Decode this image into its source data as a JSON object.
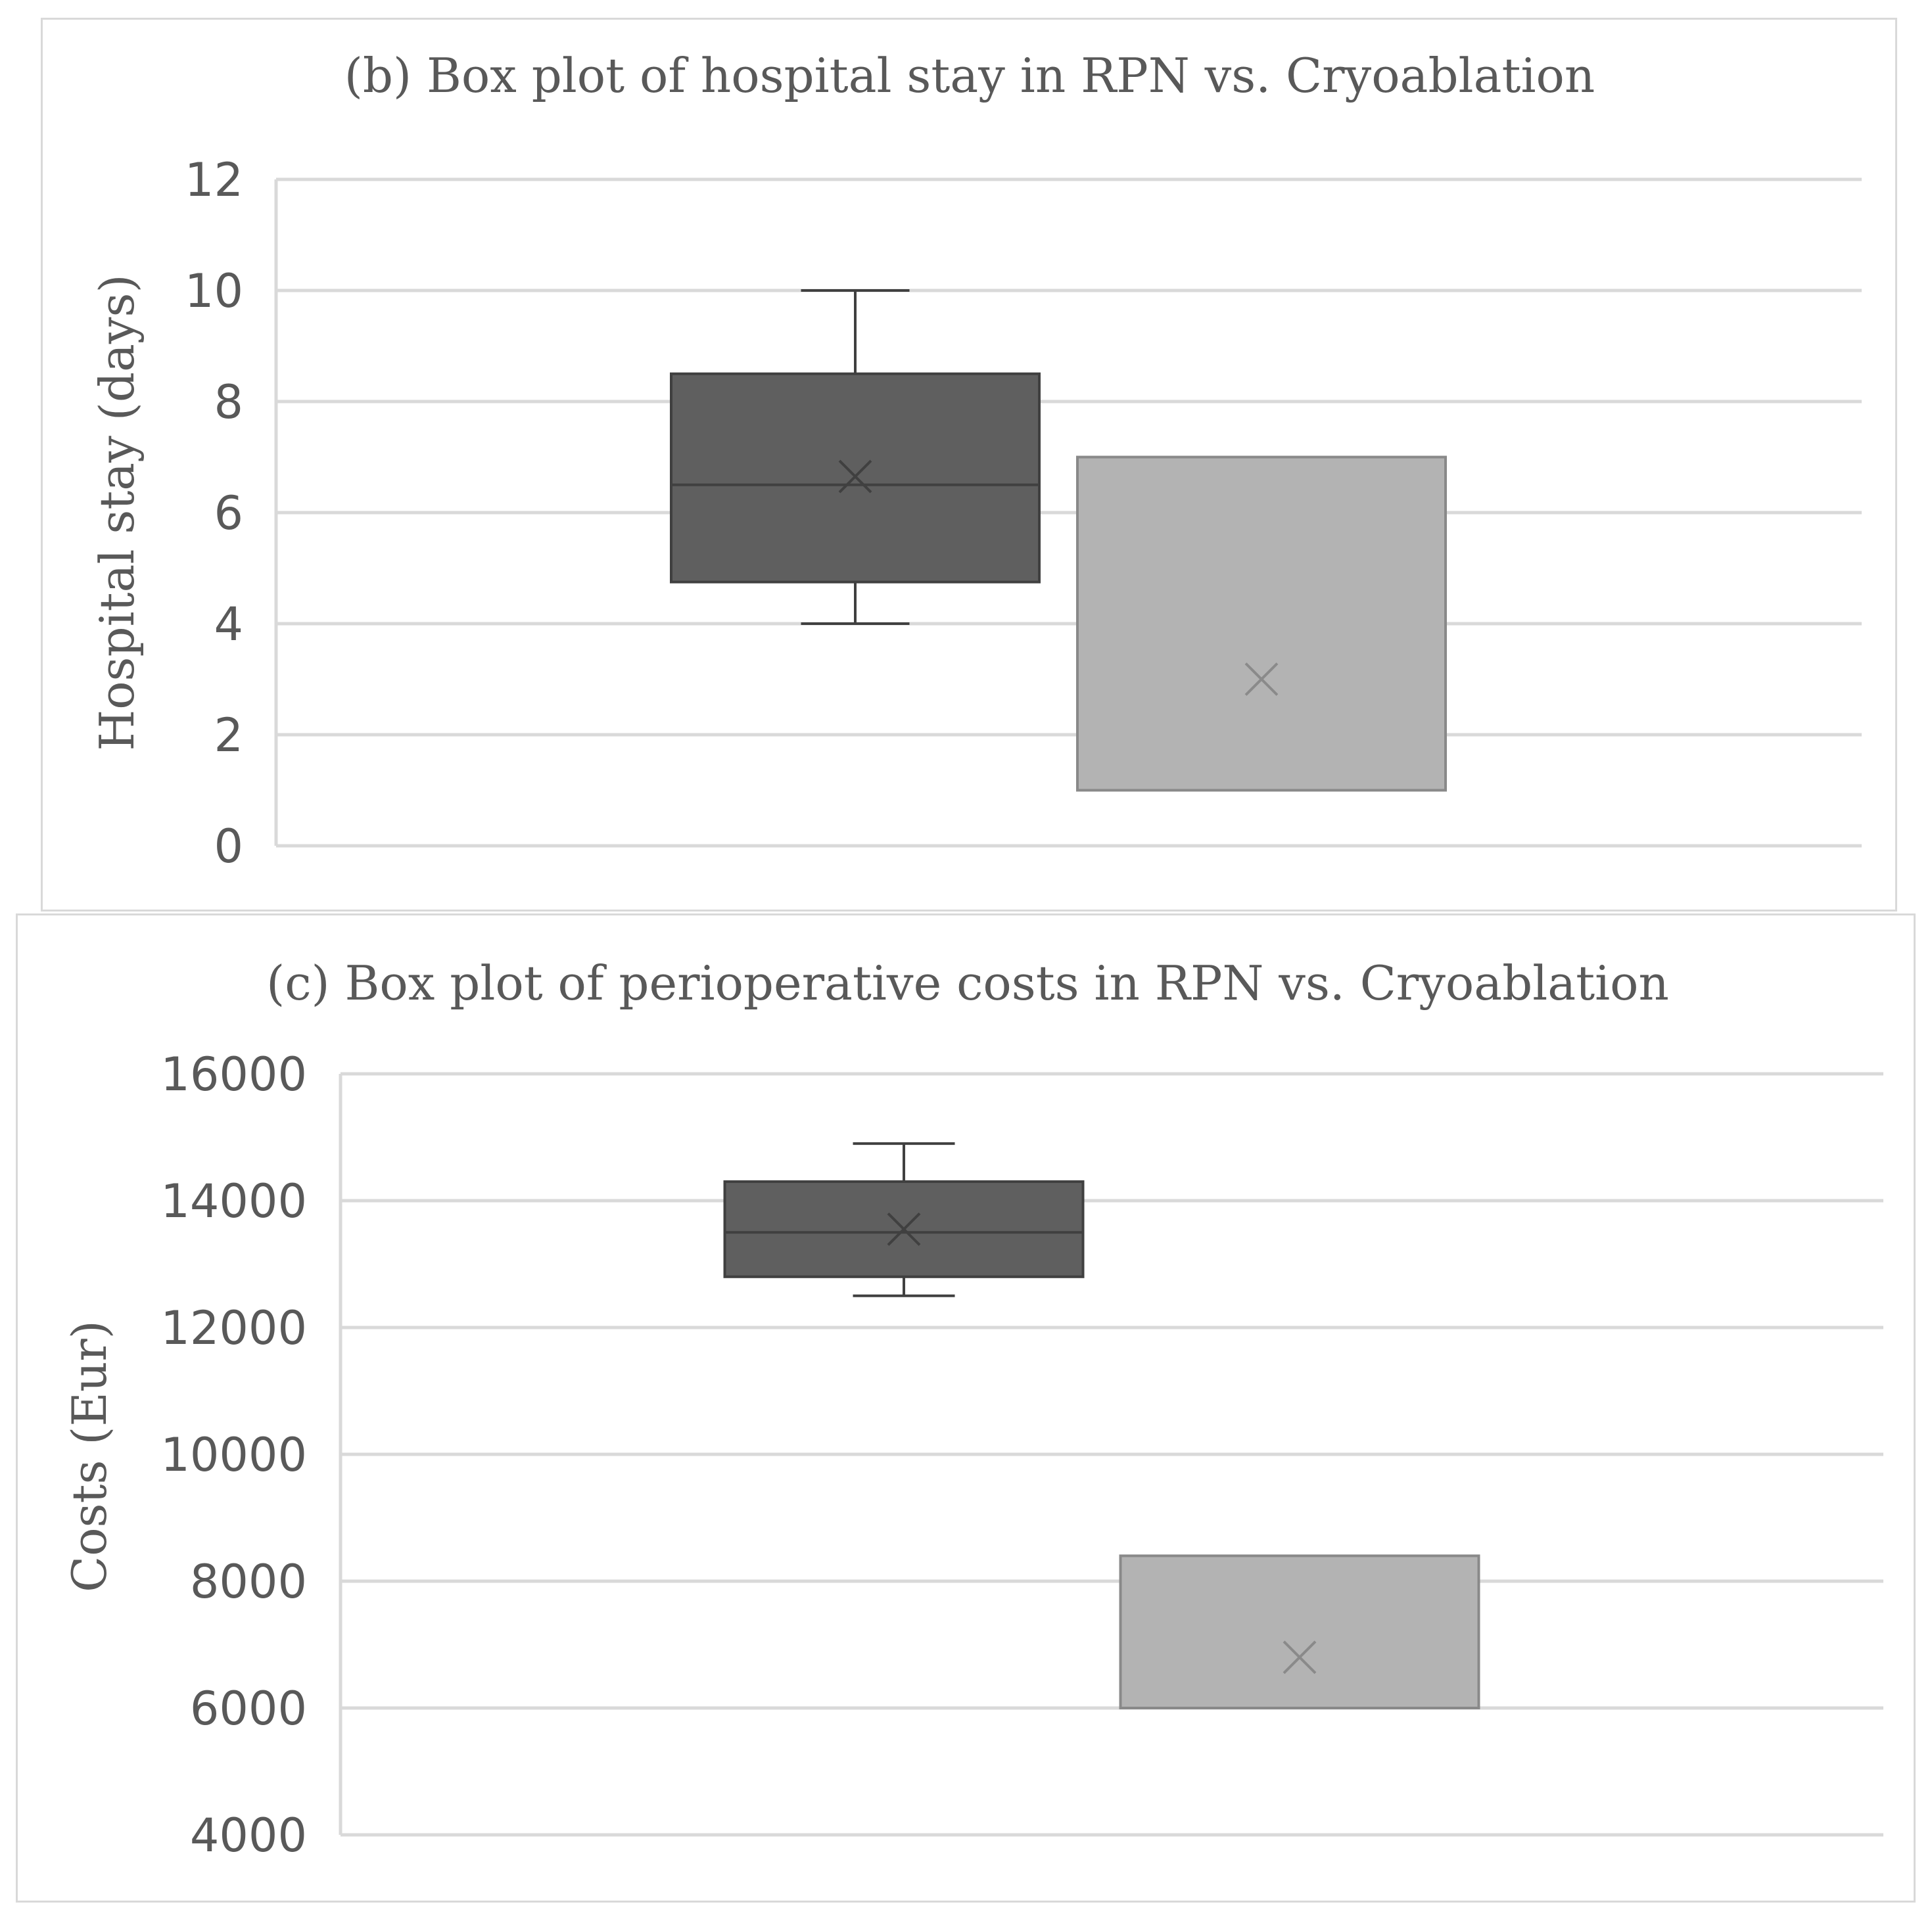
{
  "chart_data": [
    {
      "type": "box",
      "title": "(b) Box plot of hospital stay in RPN vs. Cryoablation",
      "xlabel": "",
      "ylabel": "Hospital stay (days)",
      "ylim": [
        0,
        12
      ],
      "yticks": [
        "0",
        "2",
        "4",
        "6",
        "8",
        "10",
        "12"
      ],
      "grid": true,
      "series": [
        {
          "name": "RPN",
          "min": 4,
          "q1": 4.75,
          "median": 6.5,
          "mean": 6.65,
          "q3": 8.5,
          "max": 10,
          "color": "#5f5f5f",
          "stroke": "#404040"
        },
        {
          "name": "Cryoablation",
          "min": 1,
          "q1": 1,
          "median": 1,
          "mean": 3,
          "q3": 7,
          "max": 7,
          "color": "#b3b3b3",
          "stroke": "#898989"
        }
      ]
    },
    {
      "type": "box",
      "title": "(c) Box plot of perioperative costs in RPN vs. Cryoablation",
      "xlabel": "",
      "ylabel": "Costs (Eur)",
      "ylim": [
        4000,
        16000
      ],
      "yticks": [
        "4000",
        "6000",
        "8000",
        "10000",
        "12000",
        "14000",
        "16000"
      ],
      "grid": true,
      "series": [
        {
          "name": "RPN",
          "min": 12500,
          "q1": 12800,
          "median": 13500,
          "mean": 13550,
          "q3": 14300,
          "max": 14900,
          "color": "#5f5f5f",
          "stroke": "#404040"
        },
        {
          "name": "Cryoablation",
          "min": 6000,
          "q1": 6000,
          "median": 6000,
          "mean": 6800,
          "q3": 8400,
          "max": 8400,
          "color": "#b3b3b3",
          "stroke": "#898989"
        }
      ]
    }
  ]
}
